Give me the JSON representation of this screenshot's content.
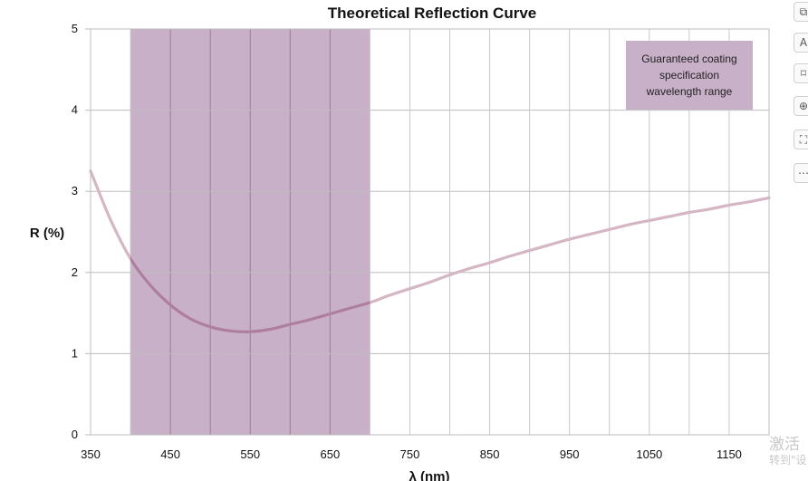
{
  "chart_data": {
    "type": "line",
    "title": "Theoretical Reflection Curve",
    "xlabel": "λ (nm)",
    "ylabel": "R (%)",
    "xlim": [
      350,
      1200
    ],
    "ylim": [
      0,
      5
    ],
    "xticks": [
      350,
      450,
      550,
      650,
      750,
      850,
      950,
      1050,
      1150
    ],
    "yticks": [
      0,
      1,
      2,
      3,
      4,
      5
    ],
    "x_gridlines": [
      350,
      400,
      450,
      500,
      550,
      600,
      650,
      700,
      750,
      800,
      850,
      900,
      950,
      1000,
      1050,
      1100,
      1150,
      1200
    ],
    "grid": true,
    "series": [
      {
        "color": "#d4b6c4",
        "x": [
          350,
          375,
          400,
          425,
          450,
          475,
          500,
          525,
          550,
          575,
          600,
          625,
          650,
          675,
          700,
          725,
          750,
          775,
          800,
          825,
          850,
          875,
          900,
          925,
          950,
          975,
          1000,
          1025,
          1050,
          1075,
          1100,
          1125,
          1150,
          1175,
          1200
        ],
        "y": [
          3.25,
          2.65,
          2.17,
          1.84,
          1.6,
          1.43,
          1.33,
          1.28,
          1.27,
          1.3,
          1.36,
          1.42,
          1.49,
          1.56,
          1.63,
          1.72,
          1.8,
          1.88,
          1.97,
          2.05,
          2.12,
          2.2,
          2.27,
          2.34,
          2.41,
          2.47,
          2.53,
          2.59,
          2.64,
          2.69,
          2.74,
          2.78,
          2.83,
          2.87,
          2.92
        ]
      }
    ],
    "highlight_band": {
      "x_start": 400,
      "x_end": 700,
      "color": "#c9b0c9",
      "curve_color_inside": "#ad7e9e",
      "label_lines": [
        "Guaranteed coating",
        "specification",
        "wavelength range"
      ]
    },
    "legend_placement": "top-right"
  },
  "toolbar": {
    "icons": [
      "image-icon",
      "text-icon",
      "comment-icon",
      "zoom-icon",
      "crop-icon",
      "more-icon"
    ],
    "glyphs": [
      "⧉",
      "A",
      "⌑",
      "⊕",
      "⛶",
      "⋯"
    ]
  },
  "watermark": {
    "line1": "激活",
    "line2": "转到\"设"
  }
}
